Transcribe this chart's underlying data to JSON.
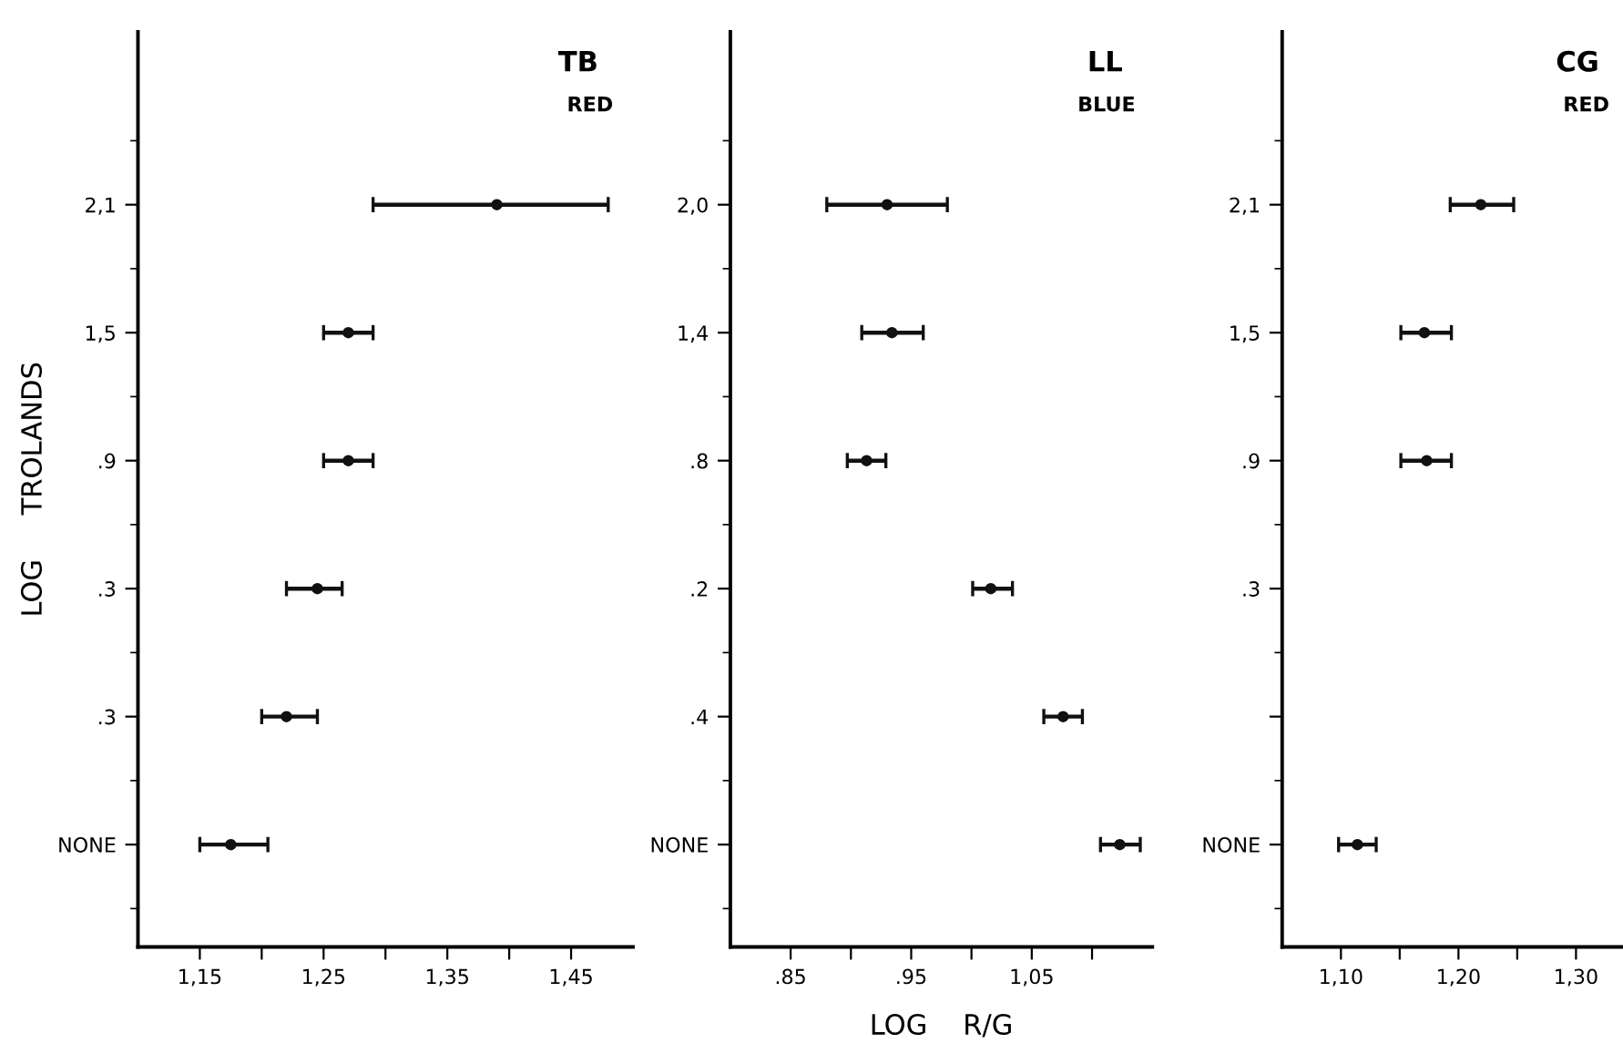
{
  "chart_data": [
    {
      "type": "scatter",
      "orientation": "horizontal",
      "title": "TB",
      "subtitle": "RED",
      "ylabel": "LOG     TROLANDS",
      "marker": "circle",
      "grid": false,
      "legend": false,
      "categories": [
        "2,1",
        "1,5",
        ".9",
        ".3",
        ".3",
        "NONE"
      ],
      "series": [
        {
          "color": "#111111",
          "values": [
            1.39,
            1.27,
            1.27,
            1.245,
            1.22,
            1.175
          ],
          "errors": [
            [
              1.29,
              1.48
            ],
            [
              1.25,
              1.29
            ],
            [
              1.25,
              1.29
            ],
            [
              1.22,
              1.265
            ],
            [
              1.2,
              1.245
            ],
            [
              1.15,
              1.205
            ]
          ]
        }
      ],
      "xlim": [
        1.1,
        1.5
      ],
      "xticks": [
        {
          "value": 1.15,
          "label": "1,15"
        },
        {
          "value": 1.2,
          "label": null
        },
        {
          "value": 1.25,
          "label": "1,25"
        },
        {
          "value": 1.3,
          "label": null
        },
        {
          "value": 1.35,
          "label": "1,35"
        },
        {
          "value": 1.4,
          "label": null
        },
        {
          "value": 1.45,
          "label": "1,45"
        }
      ]
    },
    {
      "type": "scatter",
      "orientation": "horizontal",
      "title": "LL",
      "subtitle": "BLUE",
      "xlabel": "LOG    R/G",
      "marker": "circle",
      "grid": false,
      "legend": false,
      "categories": [
        "2,0",
        "1,4",
        ".8",
        ".2",
        ".4",
        "NONE"
      ],
      "series": [
        {
          "color": "#111111",
          "values": [
            0.93,
            0.934,
            0.913,
            1.016,
            1.076,
            1.123
          ],
          "errors": [
            [
              0.88,
              0.98
            ],
            [
              0.909,
              0.96
            ],
            [
              0.897,
              0.929
            ],
            [
              1.001,
              1.034
            ],
            [
              1.06,
              1.092
            ],
            [
              1.107,
              1.14
            ]
          ]
        }
      ],
      "xlim": [
        0.8,
        1.15
      ],
      "xticks": [
        {
          "value": 0.85,
          "label": ".85"
        },
        {
          "value": 0.9,
          "label": null
        },
        {
          "value": 0.95,
          "label": ".95"
        },
        {
          "value": 1.0,
          "label": null
        },
        {
          "value": 1.05,
          "label": "1,05"
        },
        {
          "value": 1.1,
          "label": null
        }
      ]
    },
    {
      "type": "scatter",
      "orientation": "horizontal",
      "title": "CG",
      "subtitle": "RED",
      "marker": "circle",
      "grid": false,
      "legend": false,
      "categories": [
        "2,1",
        "1,5",
        ".9",
        ".3",
        null,
        "NONE"
      ],
      "series": [
        {
          "color": "#111111",
          "values": [
            1.219,
            1.171,
            1.173,
            null,
            null,
            1.114
          ],
          "errors": [
            [
              1.193,
              1.247
            ],
            [
              1.151,
              1.194
            ],
            [
              1.151,
              1.194
            ],
            null,
            null,
            [
              1.098,
              1.13
            ]
          ]
        }
      ],
      "xlim": [
        1.05,
        1.34
      ],
      "xticks": [
        {
          "value": 1.1,
          "label": "1,10"
        },
        {
          "value": 1.15,
          "label": null
        },
        {
          "value": 1.2,
          "label": "1,20"
        },
        {
          "value": 1.25,
          "label": null
        },
        {
          "value": 1.3,
          "label": "1,30"
        }
      ]
    }
  ]
}
